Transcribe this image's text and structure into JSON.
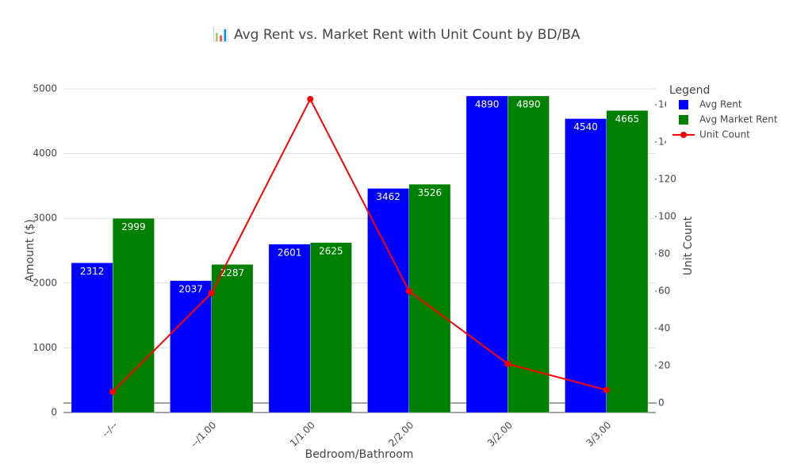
{
  "chart_data": {
    "type": "bar",
    "title": "📊 Avg Rent vs. Market Rent with Unit Count by BD/BA",
    "x_label": "Bedroom/Bathroom",
    "y_label": "Amount ($)",
    "y2_label": "Unit Count",
    "legend_title": "Legend",
    "legend": "top-right",
    "grid": true,
    "categories": [
      "--/--",
      "--/1.00",
      "1/1.00",
      "2/2.00",
      "3/2.00",
      "3/3.00"
    ],
    "series": [
      {
        "name": "Avg Rent",
        "type": "bar",
        "color": "#0000ff",
        "values": [
          2312,
          2037,
          2601,
          3462,
          4890,
          4540
        ]
      },
      {
        "name": "Avg Market Rent",
        "type": "bar",
        "color": "#008000",
        "values": [
          2999,
          2287,
          2625,
          3526,
          4890,
          4665
        ]
      },
      {
        "name": "Unit Count",
        "type": "line",
        "color": "#ff0000",
        "axis": "y2",
        "values": [
          6,
          59,
          163,
          60,
          21,
          7
        ]
      }
    ],
    "ylim": [
      0,
      5147
    ],
    "yticks": [
      0,
      1000,
      2000,
      3000,
      4000,
      5000
    ],
    "y2lim": [
      -5.1,
      173.6
    ],
    "y2ticks": [
      0,
      20,
      40,
      60,
      80,
      100,
      120,
      140,
      160
    ]
  }
}
